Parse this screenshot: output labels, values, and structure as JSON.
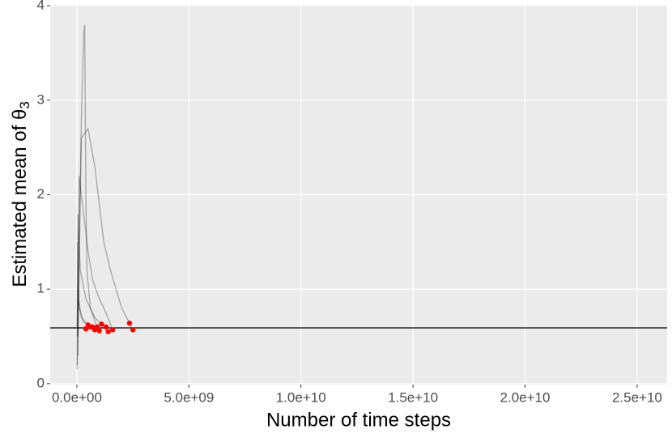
{
  "chart_data": {
    "type": "line",
    "x_label": "Number of time steps",
    "y_label": "Estimated mean of θ",
    "y_label_subscript": "3",
    "xlim": [
      -1190000000,
      26340000000
    ],
    "ylim": [
      -0.01,
      4.01
    ],
    "xticks": [
      {
        "value": 0,
        "label": "0.0e+00"
      },
      {
        "value": 5000000000,
        "label": "5.0e+09"
      },
      {
        "value": 10000000000,
        "label": "1.0e+10"
      },
      {
        "value": 15000000000,
        "label": "1.5e+10"
      },
      {
        "value": 20000000000,
        "label": "2.0e+10"
      },
      {
        "value": 25000000000,
        "label": "2.5e+10"
      }
    ],
    "yticks": [
      0,
      1,
      2,
      3,
      4
    ],
    "grid": true,
    "line_opacity": 0.3,
    "series": [
      {
        "color": "#000000",
        "x": [
          50000000,
          100000000,
          200000000,
          300000000,
          350000000,
          400000000,
          450000000,
          600000000,
          900000000
        ],
        "values": [
          0.3,
          1.5,
          2.8,
          3.7,
          3.8,
          2.0,
          1.2,
          0.8,
          0.6
        ]
      },
      {
        "color": "#000000",
        "x": [
          50000000,
          200000000,
          500000000,
          800000000,
          1000000000,
          1200000000,
          1500000000,
          2000000000,
          2350000000,
          2500000000
        ],
        "values": [
          0.5,
          2.6,
          2.7,
          2.3,
          1.9,
          1.5,
          1.2,
          0.8,
          0.64,
          0.57
        ]
      },
      {
        "color": "#000000",
        "x": [
          20000000,
          100000000,
          300000000,
          500000000,
          700000000,
          1000000000,
          1300000000,
          1600000000
        ],
        "values": [
          0.2,
          2.2,
          1.8,
          1.4,
          1.1,
          0.9,
          0.75,
          0.57
        ]
      },
      {
        "color": "#000000",
        "x": [
          20000000,
          50000000,
          150000000,
          400000000,
          800000000,
          1400000000
        ],
        "values": [
          0.5,
          1.8,
          1.2,
          0.9,
          0.7,
          0.55
        ]
      },
      {
        "color": "#000000",
        "x": [
          10000000,
          30000000,
          80000000,
          200000000,
          600000000
        ],
        "values": [
          0.15,
          1.5,
          0.9,
          0.7,
          0.6
        ]
      },
      {
        "color": "#000000",
        "x": [
          10000000,
          50000000,
          100000000,
          300000000,
          700000000,
          1100000000
        ],
        "values": [
          0.6,
          1.0,
          0.8,
          0.65,
          0.6,
          0.63
        ]
      }
    ],
    "points": {
      "color": "#ff0000",
      "x": [
        900000000,
        2500000000,
        1600000000,
        1400000000,
        600000000,
        1100000000,
        2350000000,
        400000000,
        700000000,
        1300000000,
        1000000000,
        500000000,
        800000000
      ],
      "values": [
        0.6,
        0.57,
        0.57,
        0.55,
        0.6,
        0.63,
        0.64,
        0.58,
        0.6,
        0.6,
        0.56,
        0.62,
        0.57
      ]
    },
    "hline": {
      "value": 0.59,
      "color": "#000000"
    }
  }
}
